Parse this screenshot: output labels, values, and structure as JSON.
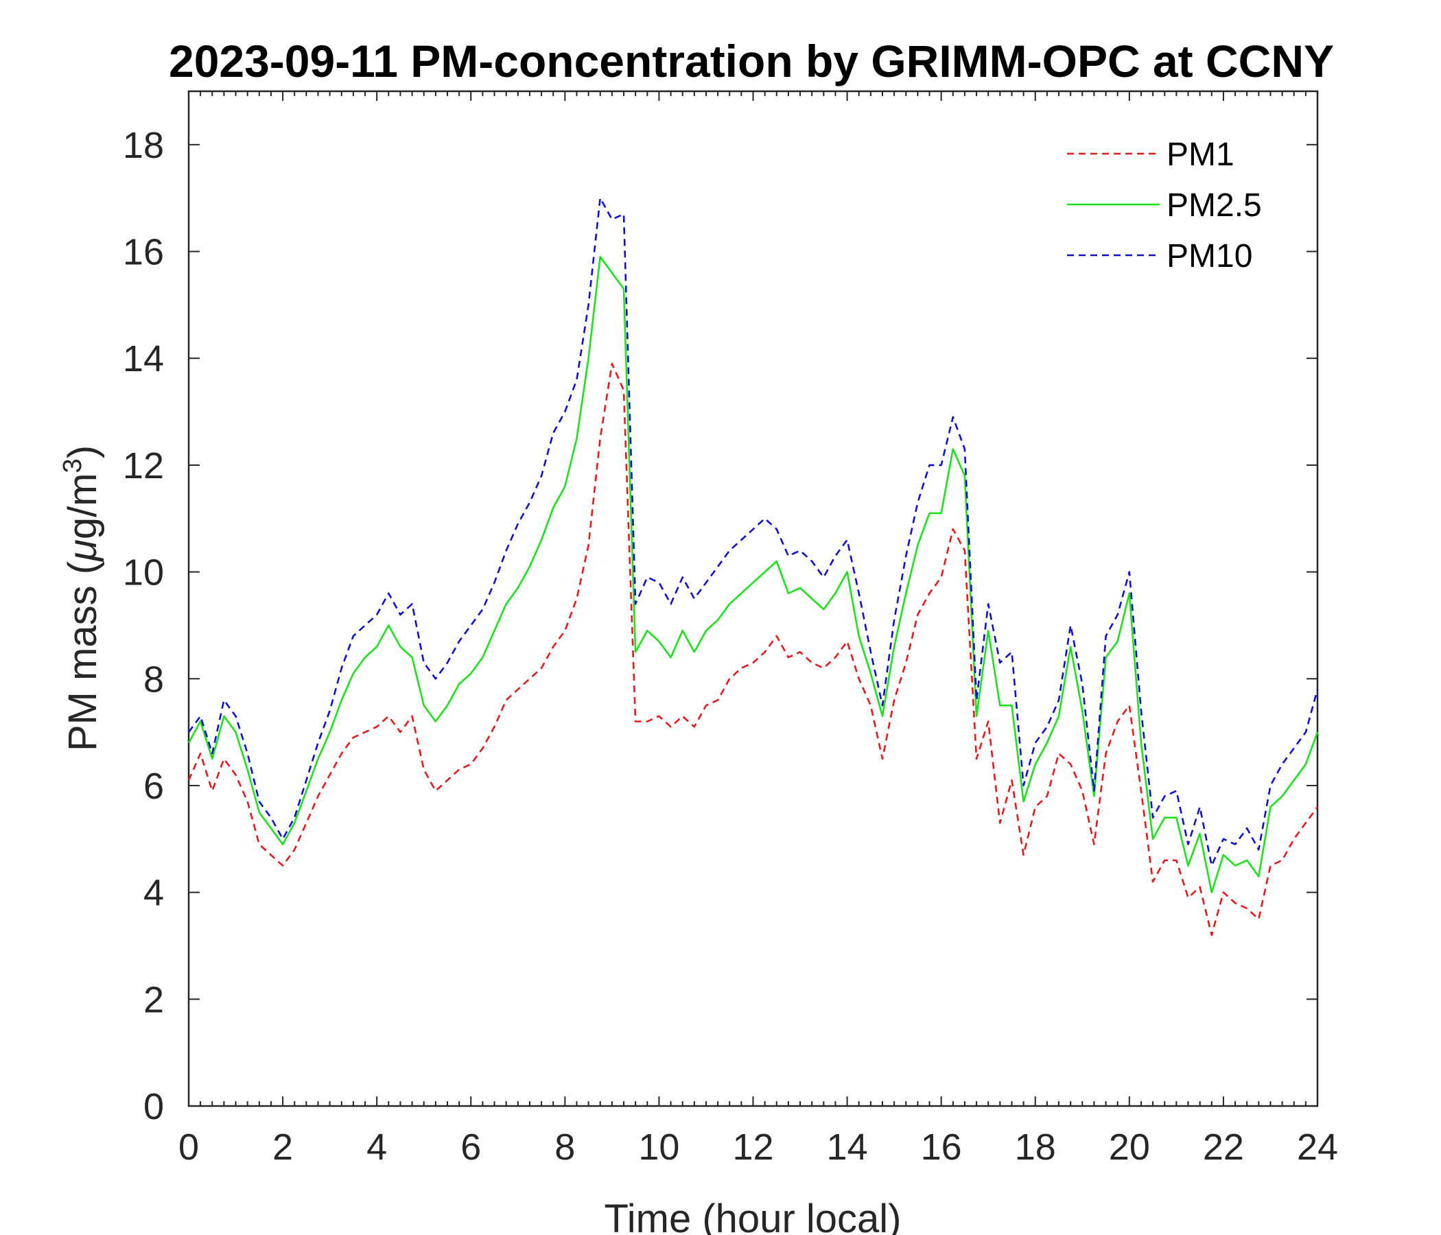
{
  "chart_data": {
    "type": "line",
    "title": "2023-09-11 PM-concentration by GRIMM-OPC at CCNY",
    "xlabel": "Time (hour local)",
    "ylabel_prefix": "PM mass (",
    "ylabel_mu": "μ",
    "ylabel_unit": "g/m",
    "ylabel_exp": "3",
    "ylabel_suffix": ")",
    "xlim": [
      0,
      24
    ],
    "ylim": [
      0,
      19
    ],
    "xticks": [
      0,
      2,
      4,
      6,
      8,
      10,
      12,
      14,
      16,
      18,
      20,
      22,
      24
    ],
    "yticks": [
      0,
      2,
      4,
      6,
      8,
      10,
      12,
      14,
      16,
      18
    ],
    "grid": false,
    "legend_position": "top-right",
    "x": [
      0,
      0.25,
      0.5,
      0.75,
      1,
      1.25,
      1.5,
      1.75,
      2,
      2.25,
      2.5,
      2.75,
      3,
      3.25,
      3.5,
      3.75,
      4,
      4.25,
      4.5,
      4.75,
      5,
      5.25,
      5.5,
      5.75,
      6,
      6.25,
      6.5,
      6.75,
      7,
      7.25,
      7.5,
      7.75,
      8,
      8.25,
      8.5,
      8.75,
      9,
      9.25,
      9.5,
      9.75,
      10,
      10.25,
      10.5,
      10.75,
      11,
      11.25,
      11.5,
      11.75,
      12,
      12.25,
      12.5,
      12.75,
      13,
      13.25,
      13.5,
      13.75,
      14,
      14.25,
      14.5,
      14.75,
      15,
      15.25,
      15.5,
      15.75,
      16,
      16.25,
      16.5,
      16.75,
      17,
      17.25,
      17.5,
      17.75,
      18,
      18.25,
      18.5,
      18.75,
      19,
      19.25,
      19.5,
      19.75,
      20,
      20.25,
      20.5,
      20.75,
      21,
      21.25,
      21.5,
      21.75,
      22,
      22.25,
      22.5,
      22.75,
      23,
      23.25,
      23.5,
      23.75,
      24
    ],
    "series": [
      {
        "name": "PM1",
        "color": "#e31a1c",
        "style": "dashed",
        "values": [
          6.1,
          6.6,
          5.9,
          6.5,
          6.2,
          5.7,
          4.9,
          4.7,
          4.5,
          4.8,
          5.3,
          5.8,
          6.2,
          6.6,
          6.9,
          7.0,
          7.1,
          7.3,
          7.0,
          7.3,
          6.3,
          5.9,
          6.1,
          6.3,
          6.4,
          6.7,
          7.1,
          7.6,
          7.8,
          8.0,
          8.2,
          8.6,
          8.9,
          9.5,
          10.5,
          12.5,
          13.9,
          13.4,
          7.2,
          7.2,
          7.3,
          7.1,
          7.3,
          7.1,
          7.5,
          7.6,
          8.0,
          8.2,
          8.3,
          8.5,
          8.8,
          8.4,
          8.5,
          8.3,
          8.2,
          8.4,
          8.7,
          8.0,
          7.5,
          6.5,
          7.6,
          8.3,
          9.2,
          9.6,
          9.9,
          10.8,
          10.4,
          6.5,
          7.2,
          5.3,
          6.1,
          4.7,
          5.6,
          5.8,
          6.6,
          6.4,
          5.9,
          4.9,
          6.6,
          7.2,
          7.5,
          5.9,
          4.2,
          4.6,
          4.6,
          3.9,
          4.1,
          3.2,
          4.0,
          3.8,
          3.7,
          3.5,
          4.5,
          4.6,
          5.0,
          5.3,
          5.6
        ]
      },
      {
        "name": "PM2.5",
        "color": "#1ee01e",
        "style": "solid",
        "values": [
          6.8,
          7.2,
          6.5,
          7.3,
          7.0,
          6.3,
          5.5,
          5.2,
          4.9,
          5.3,
          5.9,
          6.5,
          7.0,
          7.6,
          8.1,
          8.4,
          8.6,
          9.0,
          8.6,
          8.4,
          7.5,
          7.2,
          7.5,
          7.9,
          8.1,
          8.4,
          8.9,
          9.4,
          9.7,
          10.1,
          10.6,
          11.2,
          11.6,
          12.5,
          14.0,
          15.9,
          15.6,
          15.3,
          8.5,
          8.9,
          8.7,
          8.4,
          8.9,
          8.5,
          8.9,
          9.1,
          9.4,
          9.6,
          9.8,
          10.0,
          10.2,
          9.6,
          9.7,
          9.5,
          9.3,
          9.6,
          10.0,
          8.8,
          8.1,
          7.3,
          8.6,
          9.6,
          10.5,
          11.1,
          11.1,
          12.3,
          11.8,
          7.3,
          8.9,
          7.5,
          7.5,
          5.7,
          6.4,
          6.8,
          7.3,
          8.6,
          7.4,
          5.8,
          8.4,
          8.7,
          9.6,
          6.8,
          5.0,
          5.4,
          5.4,
          4.5,
          5.1,
          4.0,
          4.7,
          4.5,
          4.6,
          4.3,
          5.6,
          5.8,
          6.1,
          6.4,
          7.0
        ]
      },
      {
        "name": "PM10",
        "color": "#1010cc",
        "style": "dashed",
        "values": [
          7.0,
          7.3,
          6.6,
          7.6,
          7.3,
          6.6,
          5.7,
          5.4,
          5.0,
          5.4,
          6.1,
          6.8,
          7.4,
          8.2,
          8.8,
          9.0,
          9.2,
          9.6,
          9.2,
          9.4,
          8.3,
          8.0,
          8.3,
          8.7,
          9.0,
          9.3,
          9.8,
          10.4,
          10.9,
          11.3,
          11.8,
          12.6,
          13.0,
          13.6,
          15.0,
          17.0,
          16.6,
          16.7,
          9.4,
          9.9,
          9.8,
          9.4,
          9.9,
          9.5,
          9.8,
          10.1,
          10.4,
          10.6,
          10.8,
          11.0,
          10.8,
          10.3,
          10.4,
          10.2,
          9.9,
          10.3,
          10.6,
          9.6,
          8.5,
          7.5,
          9.1,
          10.3,
          11.3,
          12.0,
          12.0,
          12.9,
          12.3,
          7.6,
          9.4,
          8.3,
          8.5,
          6.0,
          6.8,
          7.1,
          7.6,
          9.0,
          7.9,
          5.9,
          8.8,
          9.2,
          10.0,
          7.4,
          5.4,
          5.8,
          5.9,
          4.9,
          5.6,
          4.5,
          5.0,
          4.9,
          5.2,
          4.8,
          6.0,
          6.4,
          6.7,
          7.0,
          7.8
        ]
      }
    ]
  }
}
